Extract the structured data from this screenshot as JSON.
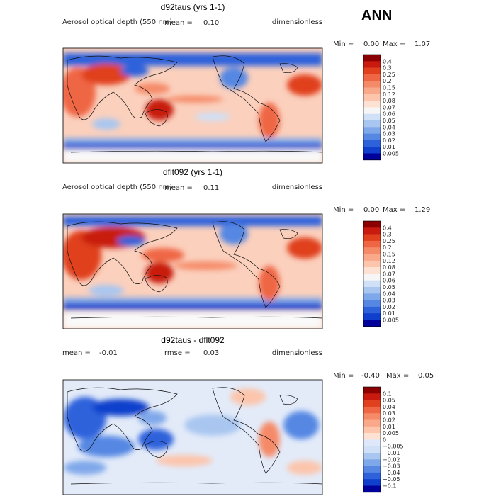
{
  "season": "ANN",
  "panels": [
    {
      "title": "d92taus (yrs 1-1)",
      "left_label": "Aerosol optical depth (550 nm)",
      "mean_label": "mean =",
      "mean_value": "0.10",
      "units": "dimensionless",
      "min_label": "Min =",
      "min_value": "0.00",
      "max_label": "Max =",
      "max_value": "1.07"
    },
    {
      "title": "dflt092 (yrs 1-1)",
      "left_label": "Aerosol optical depth (550 nm)",
      "mean_label": "mean =",
      "mean_value": "0.11",
      "units": "dimensionless",
      "min_label": "Min =",
      "min_value": "0.00",
      "max_label": "Max =",
      "max_value": "1.29"
    },
    {
      "title": "d92taus - dflt092",
      "left_label": "mean =",
      "left_value": "-0.01",
      "rmse_label": "rmse =",
      "rmse_value": "0.03",
      "units": "dimensionless",
      "min_label": "Min =",
      "min_value": "-0.40",
      "max_label": "Max =",
      "max_value": "0.05"
    }
  ],
  "colorbars": [
    {
      "levels": [
        "0.4",
        "0.3",
        "0.25",
        "0.2",
        "0.15",
        "0.12",
        "0.08",
        "0.07",
        "0.06",
        "0.05",
        "0.04",
        "0.03",
        "0.02",
        "0.01",
        "0.005"
      ],
      "colors": [
        "#8b0000",
        "#c81a0e",
        "#e0401e",
        "#ef6644",
        "#f58a68",
        "#f9a98a",
        "#fcc5ac",
        "#fde1d2",
        "#f6f6f6",
        "#cfe0f7",
        "#a9c6f0",
        "#7fa8ea",
        "#5587e3",
        "#2d62db",
        "#0f3fcc",
        "#00009a"
      ]
    },
    {
      "levels": [
        "0.4",
        "0.3",
        "0.25",
        "0.2",
        "0.15",
        "0.12",
        "0.08",
        "0.07",
        "0.06",
        "0.05",
        "0.04",
        "0.03",
        "0.02",
        "0.01",
        "0.005"
      ],
      "colors": [
        "#8b0000",
        "#c81a0e",
        "#e0401e",
        "#ef6644",
        "#f58a68",
        "#f9a98a",
        "#fcc5ac",
        "#fde1d2",
        "#f6f6f6",
        "#cfe0f7",
        "#a9c6f0",
        "#7fa8ea",
        "#5587e3",
        "#2d62db",
        "#0f3fcc",
        "#00009a"
      ]
    },
    {
      "levels": [
        "0.1",
        "0.05",
        "0.04",
        "0.03",
        "0.02",
        "0.01",
        "0.005",
        "0",
        "−0.005",
        "−0.01",
        "−0.02",
        "−0.03",
        "−0.04",
        "−0.05",
        "−0.1"
      ],
      "colors": [
        "#8b0000",
        "#c81a0e",
        "#e0401e",
        "#ef6644",
        "#f58a68",
        "#f9a98a",
        "#fcc5ac",
        "#fde1d2",
        "#dfe8fa",
        "#cfe0f7",
        "#a9c6f0",
        "#7fa8ea",
        "#5587e3",
        "#2d62db",
        "#0f3fcc",
        "#00009a"
      ]
    }
  ],
  "chart_data": {
    "type": "heatmap",
    "title": "ANN",
    "maps": [
      {
        "name": "d92taus (yrs 1-1)",
        "variable": "Aerosol optical depth (550 nm)",
        "mean": 0.1,
        "min": 0.0,
        "max": 1.07
      },
      {
        "name": "dflt092 (yrs 1-1)",
        "variable": "Aerosol optical depth (550 nm)",
        "mean": 0.11,
        "min": 0.0,
        "max": 1.29
      },
      {
        "name": "d92taus - dflt092",
        "mean": -0.01,
        "rmse": 0.03,
        "min": -0.4,
        "max": 0.05
      }
    ]
  }
}
